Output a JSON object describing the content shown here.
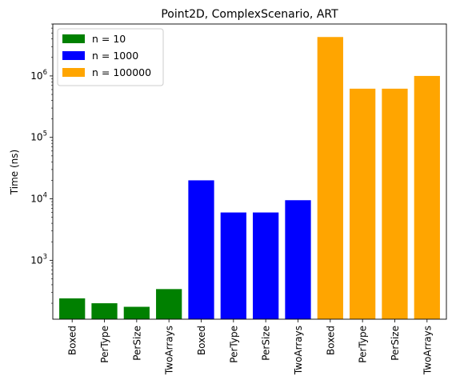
{
  "chart_data": {
    "type": "bar",
    "title": "Point2D, ComplexScenario, ART",
    "xlabel": "",
    "ylabel": "Time (ns)",
    "yscale": "log",
    "ylim": [
      110,
      7000000
    ],
    "ytick_labels": [
      {
        "value": 1000,
        "base": "10",
        "exp": "3"
      },
      {
        "value": 10000,
        "base": "10",
        "exp": "4"
      },
      {
        "value": 100000,
        "base": "10",
        "exp": "5"
      },
      {
        "value": 1000000,
        "base": "10",
        "exp": "6"
      }
    ],
    "grid": false,
    "legend_position": "top-left",
    "categories": [
      "Boxed",
      "PerType",
      "PerSize",
      "TwoArrays",
      "Boxed",
      "PerType",
      "PerSize",
      "TwoArrays",
      "Boxed",
      "PerType",
      "PerSize",
      "TwoArrays"
    ],
    "series": [
      {
        "name": "n = 10",
        "color": "#008000",
        "positions": [
          0,
          1,
          2,
          3
        ],
        "values": [
          240,
          200,
          175,
          340
        ]
      },
      {
        "name": "n = 1000",
        "color": "#0000ff",
        "positions": [
          4,
          5,
          6,
          7
        ],
        "values": [
          20000,
          6000,
          6000,
          9500
        ]
      },
      {
        "name": "n = 100000",
        "color": "#ffa500",
        "positions": [
          8,
          9,
          10,
          11
        ],
        "values": [
          4300000,
          620000,
          620000,
          1000000
        ]
      }
    ]
  }
}
